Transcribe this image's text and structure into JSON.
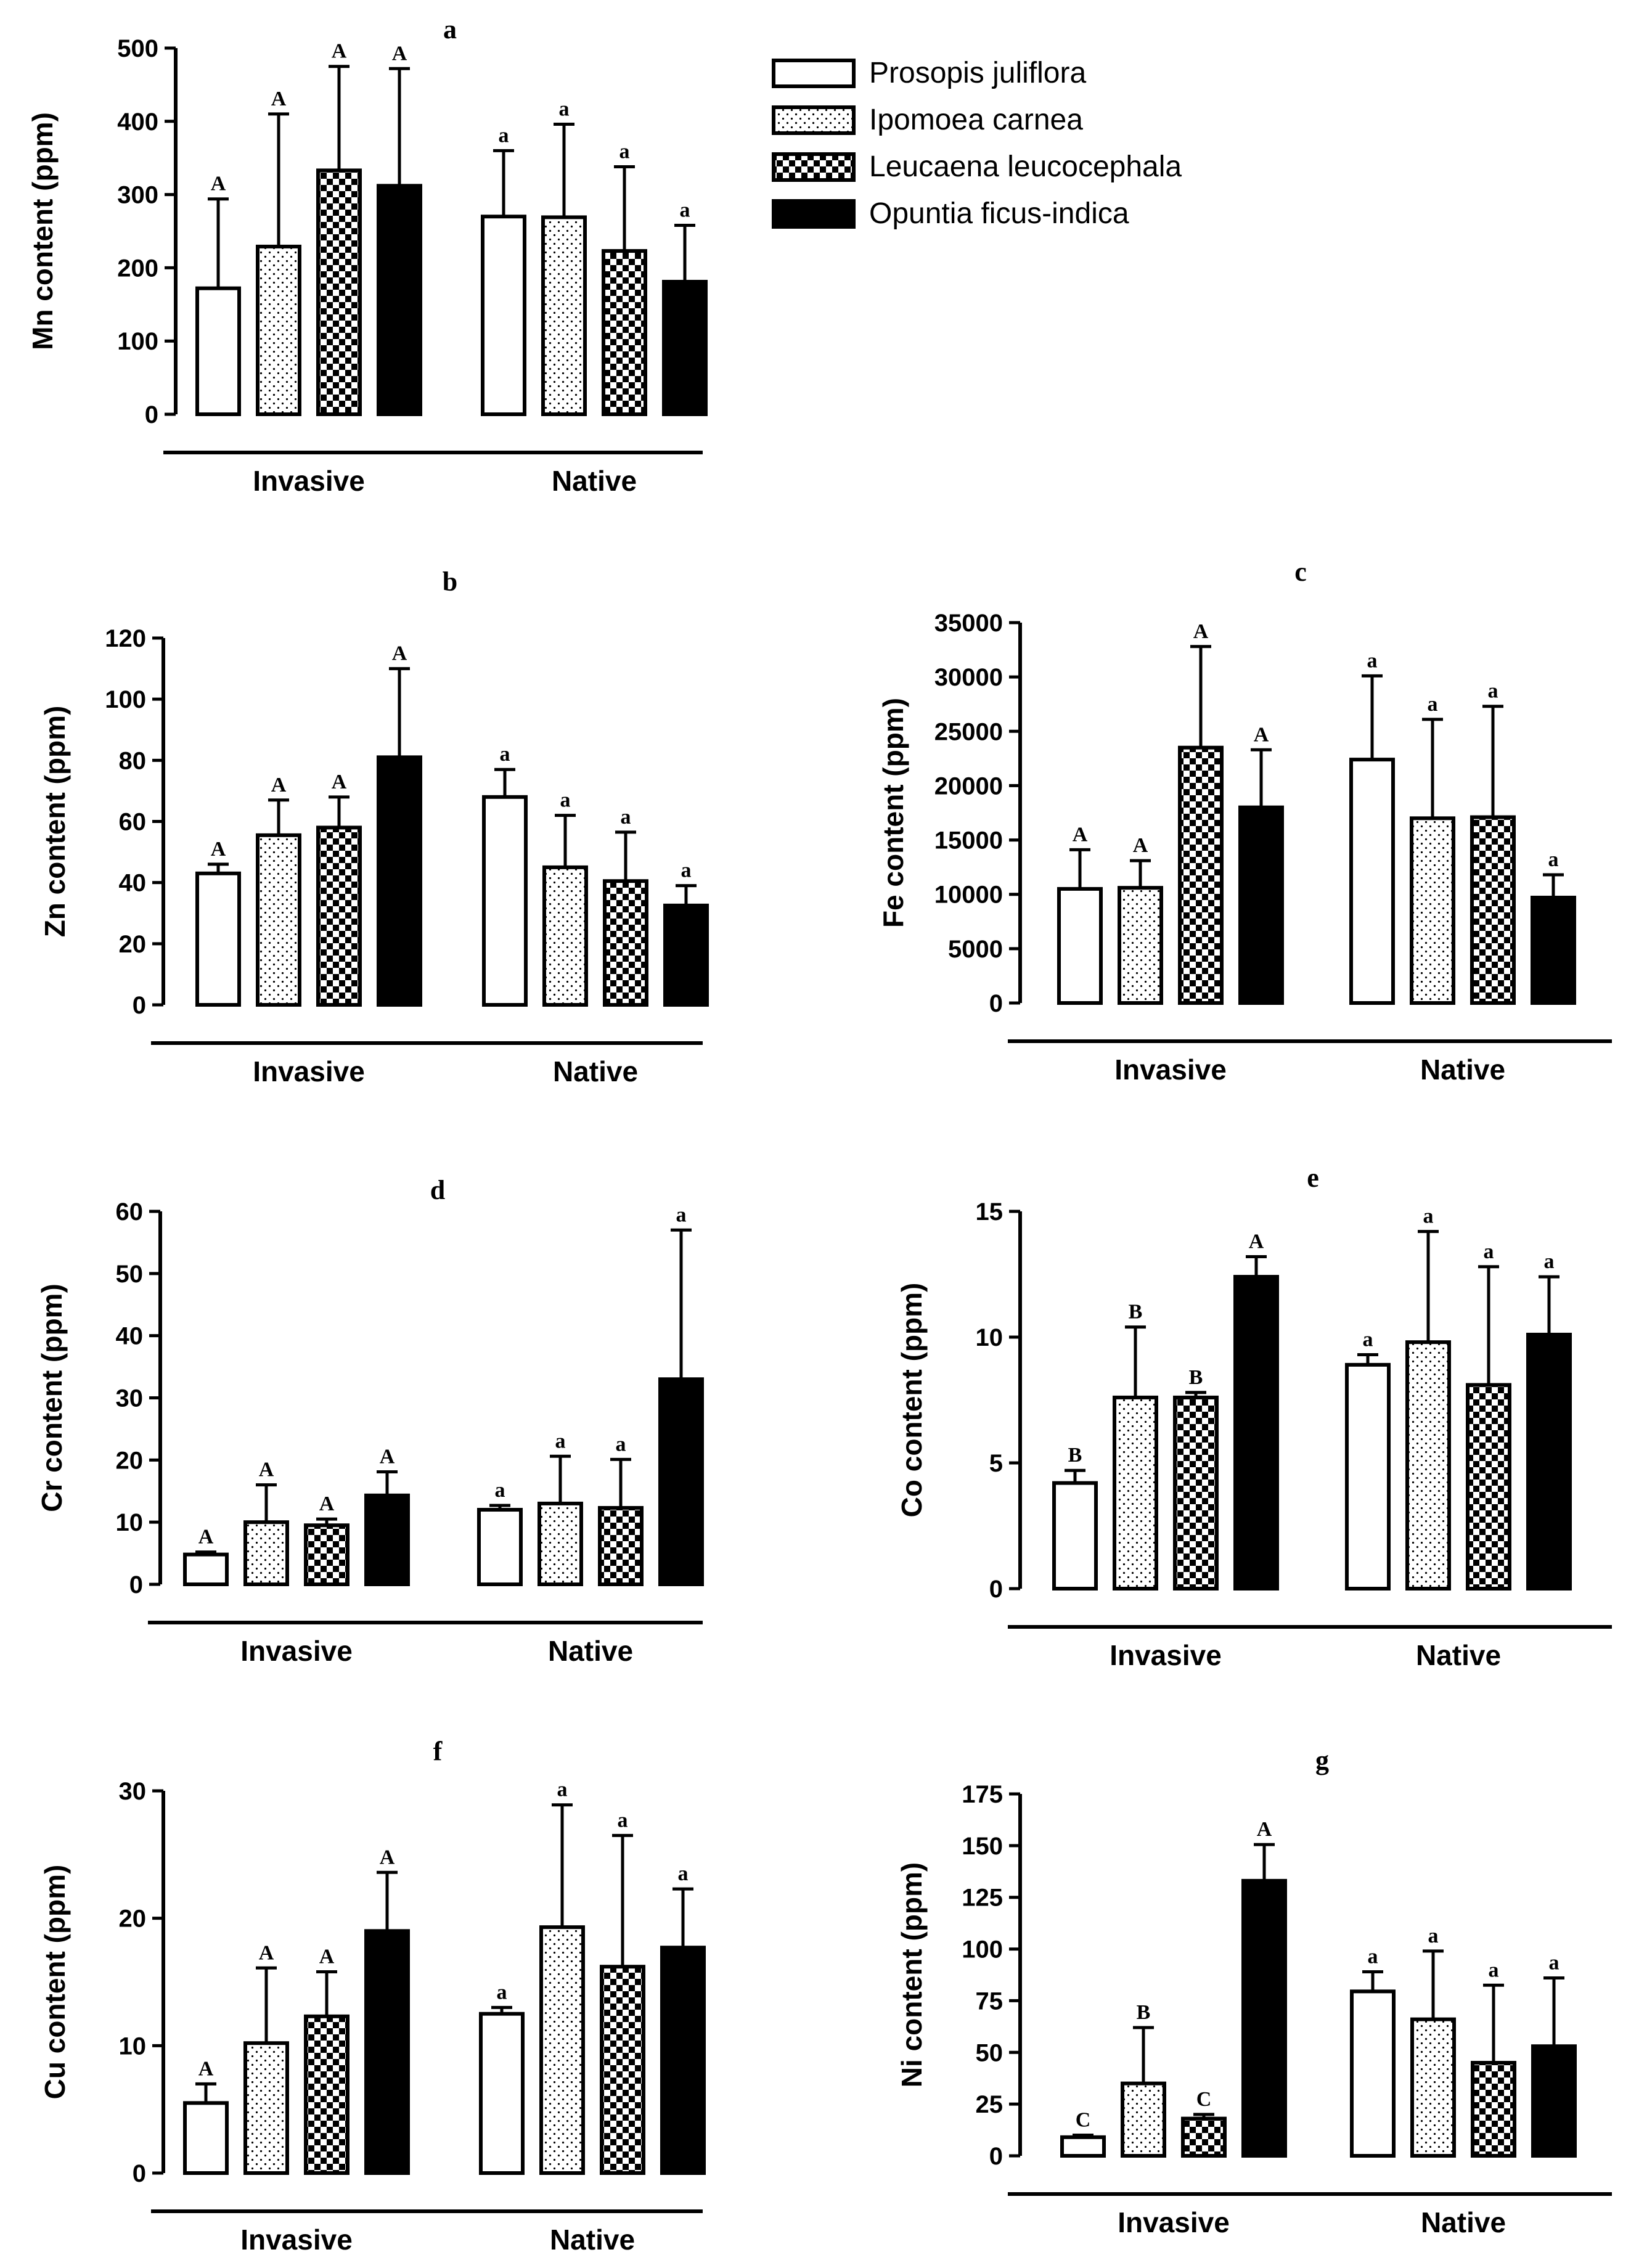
{
  "legend": [
    {
      "name": "Prosopis juliflora",
      "pattern": "open"
    },
    {
      "name": "Ipomoea carnea",
      "pattern": "dots"
    },
    {
      "name": "Leucaena leucocephala",
      "pattern": "checker"
    },
    {
      "name": "Opuntia ficus-indica",
      "pattern": "solid"
    }
  ],
  "chart_data": [
    {
      "type": "bar",
      "panel": "a",
      "ylabel": "Mn content (ppm)",
      "groups": [
        "Invasive",
        "Native"
      ],
      "ylim": [
        0,
        500
      ],
      "yticks": [
        "0",
        "100",
        "200",
        "300",
        "400",
        "500"
      ],
      "series": [
        {
          "name": "Prosopis juliflora",
          "values": [
            172,
            270
          ],
          "errors": [
            122,
            90
          ],
          "letters": [
            "A",
            "a"
          ]
        },
        {
          "name": "Ipomoea carnea",
          "values": [
            229,
            269
          ],
          "errors": [
            181,
            127
          ],
          "letters": [
            "A",
            "a"
          ]
        },
        {
          "name": "Leucaena leucocephala",
          "values": [
            333,
            223
          ],
          "errors": [
            142,
            115
          ],
          "letters": [
            "A",
            "a"
          ]
        },
        {
          "name": "Opuntia ficus-indica",
          "values": [
            312,
            181
          ],
          "errors": [
            160,
            77
          ],
          "letters": [
            "A",
            "a"
          ]
        }
      ]
    },
    {
      "type": "bar",
      "panel": "b",
      "ylabel": "Zn content (ppm)",
      "groups": [
        "Invasive",
        "Native"
      ],
      "ylim": [
        0,
        120
      ],
      "yticks": [
        "0",
        "20",
        "40",
        "60",
        "80",
        "100",
        "120"
      ],
      "series": [
        {
          "name": "Prosopis juliflora",
          "values": [
            43,
            68
          ],
          "errors": [
            3,
            9
          ],
          "letters": [
            "A",
            "a"
          ]
        },
        {
          "name": "Ipomoea carnea",
          "values": [
            55.5,
            45
          ],
          "errors": [
            11.5,
            17
          ],
          "letters": [
            "A",
            "a"
          ]
        },
        {
          "name": "Leucaena leucocephala",
          "values": [
            58,
            40.5
          ],
          "errors": [
            10,
            16
          ],
          "letters": [
            "A",
            "a"
          ]
        },
        {
          "name": "Opuntia ficus-indica",
          "values": [
            81,
            32.5
          ],
          "errors": [
            29,
            6.5
          ],
          "letters": [
            "A",
            "a"
          ]
        }
      ]
    },
    {
      "type": "bar",
      "panel": "c",
      "ylabel": "Fe content (ppm)",
      "groups": [
        "Invasive",
        "Native"
      ],
      "ylim": [
        0,
        35000
      ],
      "yticks": [
        "0",
        "5000",
        "10000",
        "15000",
        "20000",
        "25000",
        "30000",
        "35000"
      ],
      "series": [
        {
          "name": "Prosopis juliflora",
          "values": [
            10500,
            22400
          ],
          "errors": [
            3600,
            7700
          ],
          "letters": [
            "A",
            "a"
          ]
        },
        {
          "name": "Ipomoea carnea",
          "values": [
            10600,
            17000
          ],
          "errors": [
            2500,
            9100
          ],
          "letters": [
            "A",
            "a"
          ]
        },
        {
          "name": "Leucaena leucocephala",
          "values": [
            23500,
            17100
          ],
          "errors": [
            9300,
            10200
          ],
          "letters": [
            "A",
            "a"
          ]
        },
        {
          "name": "Opuntia ficus-indica",
          "values": [
            18000,
            9700
          ],
          "errors": [
            5300,
            2100
          ],
          "letters": [
            "A",
            "a"
          ]
        }
      ]
    },
    {
      "type": "bar",
      "panel": "d",
      "ylabel": "Cr content (ppm)",
      "groups": [
        "Invasive",
        "Native"
      ],
      "ylim": [
        0,
        60
      ],
      "yticks": [
        "0",
        "10",
        "20",
        "30",
        "40",
        "50",
        "60"
      ],
      "series": [
        {
          "name": "Prosopis juliflora",
          "values": [
            4.8,
            12
          ],
          "errors": [
            0.4,
            0.7
          ],
          "letters": [
            "A",
            "a"
          ]
        },
        {
          "name": "Ipomoea carnea",
          "values": [
            10,
            13
          ],
          "errors": [
            6,
            7.6
          ],
          "letters": [
            "A",
            "a"
          ]
        },
        {
          "name": "Leucaena leucocephala",
          "values": [
            9.5,
            12.3
          ],
          "errors": [
            1,
            7.8
          ],
          "letters": [
            "A",
            "a"
          ]
        },
        {
          "name": "Opuntia ficus-indica",
          "values": [
            14.3,
            33
          ],
          "errors": [
            3.8,
            24
          ],
          "letters": [
            "A",
            "a"
          ]
        }
      ]
    },
    {
      "type": "bar",
      "panel": "e",
      "ylabel": "Co content (ppm)",
      "groups": [
        "Invasive",
        "Native"
      ],
      "ylim": [
        0,
        15
      ],
      "yticks": [
        "0",
        "5",
        "10",
        "15"
      ],
      "series": [
        {
          "name": "Prosopis juliflora",
          "values": [
            4.2,
            8.9
          ],
          "errors": [
            0.5,
            0.4
          ],
          "letters": [
            "B",
            "a"
          ]
        },
        {
          "name": "Ipomoea carnea",
          "values": [
            7.6,
            9.8
          ],
          "errors": [
            2.8,
            4.4
          ],
          "letters": [
            "B",
            "a"
          ]
        },
        {
          "name": "Leucaena leucocephala",
          "values": [
            7.6,
            8.1
          ],
          "errors": [
            0.2,
            4.7
          ],
          "letters": [
            "B",
            "a"
          ]
        },
        {
          "name": "Opuntia ficus-indica",
          "values": [
            12.4,
            10.1
          ],
          "errors": [
            0.8,
            2.3
          ],
          "letters": [
            "A",
            "a"
          ]
        }
      ]
    },
    {
      "type": "bar",
      "panel": "f",
      "ylabel": "Cu content (ppm)",
      "groups": [
        "Invasive",
        "Native"
      ],
      "ylim": [
        0,
        30
      ],
      "yticks": [
        "0",
        "10",
        "20",
        "30"
      ],
      "series": [
        {
          "name": "Prosopis juliflora",
          "values": [
            5.5,
            12.5
          ],
          "errors": [
            1.5,
            0.5
          ],
          "letters": [
            "A",
            "a"
          ]
        },
        {
          "name": "Ipomoea carnea",
          "values": [
            10.2,
            19.3
          ],
          "errors": [
            5.9,
            9.6
          ],
          "letters": [
            "A",
            "a"
          ]
        },
        {
          "name": "Leucaena leucocephala",
          "values": [
            12.3,
            16.2
          ],
          "errors": [
            3.5,
            10.3
          ],
          "letters": [
            "A",
            "a"
          ]
        },
        {
          "name": "Opuntia ficus-indica",
          "values": [
            19,
            17.7
          ],
          "errors": [
            4.6,
            4.6
          ],
          "letters": [
            "A",
            "a"
          ]
        }
      ]
    },
    {
      "type": "bar",
      "panel": "g",
      "ylabel": "Ni content (ppm)",
      "groups": [
        "Invasive",
        "Native"
      ],
      "ylim": [
        0,
        175
      ],
      "yticks": [
        "0",
        "25",
        "50",
        "75",
        "100",
        "125",
        "150",
        "175"
      ],
      "series": [
        {
          "name": "Prosopis juliflora",
          "values": [
            9,
            79.5
          ],
          "errors": [
            1,
            9.5
          ],
          "letters": [
            "C",
            "a"
          ]
        },
        {
          "name": "Ipomoea carnea",
          "values": [
            35,
            66
          ],
          "errors": [
            27,
            33
          ],
          "letters": [
            "B",
            "a"
          ]
        },
        {
          "name": "Leucaena leucocephala",
          "values": [
            18,
            45
          ],
          "errors": [
            2,
            37.5
          ],
          "letters": [
            "C",
            "a"
          ]
        },
        {
          "name": "Opuntia ficus-indica",
          "values": [
            133,
            53
          ],
          "errors": [
            17.5,
            33
          ],
          "letters": [
            "A",
            "a"
          ]
        }
      ]
    }
  ]
}
